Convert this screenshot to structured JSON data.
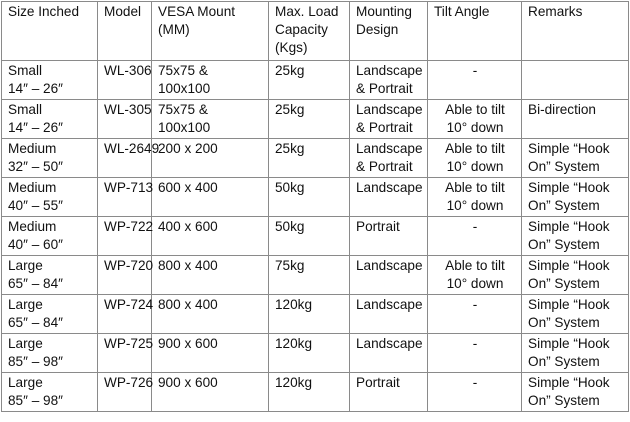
{
  "headers": [
    [
      "Size Inched"
    ],
    [
      "Model"
    ],
    [
      "VESA Mount",
      "(MM)"
    ],
    [
      "Max. Load",
      "Capacity",
      "(Kgs)"
    ],
    [
      "Mounting",
      "Design"
    ],
    [
      "Tilt Angle"
    ],
    [
      "Remarks"
    ]
  ],
  "rows": [
    [
      [
        "Small",
        "14″ – 26″"
      ],
      [
        "WL-306"
      ],
      [
        "75x75 &",
        "100x100"
      ],
      [
        "25kg"
      ],
      [
        "Landscape",
        "&  Portrait"
      ],
      [
        "-"
      ],
      []
    ],
    [
      [
        "Small",
        "14″ – 26″"
      ],
      [
        "WL-305"
      ],
      [
        "75x75 &",
        "100x100"
      ],
      [
        "25kg"
      ],
      [
        "Landscape",
        "&  Portrait"
      ],
      [
        "Able to tilt",
        "10° down"
      ],
      [
        "Bi-direction"
      ]
    ],
    [
      [
        "Medium",
        "32″ – 50″"
      ],
      [
        "WL-2649"
      ],
      [
        "200 x 200"
      ],
      [
        "25kg"
      ],
      [
        "Landscape",
        "&  Portrait"
      ],
      [
        "Able to tilt",
        "10° down"
      ],
      [
        "Simple “Hook",
        "On” System"
      ]
    ],
    [
      [
        "Medium",
        "40″ – 55″"
      ],
      [
        "WP-713"
      ],
      [
        "600 x 400"
      ],
      [
        "50kg"
      ],
      [
        "Landscape"
      ],
      [
        "Able to tilt",
        "10° down"
      ],
      [
        "Simple “Hook",
        "On” System"
      ]
    ],
    [
      [
        "Medium",
        "40″ – 60″"
      ],
      [
        "WP-722"
      ],
      [
        "400 x 600"
      ],
      [
        "50kg"
      ],
      [
        "Portrait"
      ],
      [
        "-"
      ],
      [
        "Simple “Hook",
        "On” System"
      ]
    ],
    [
      [
        "Large",
        "65″ – 84″"
      ],
      [
        "WP-720"
      ],
      [
        "800 x 400"
      ],
      [
        "75kg"
      ],
      [
        "Landscape"
      ],
      [
        "Able to tilt",
        "10° down"
      ],
      [
        "Simple “Hook",
        "On” System"
      ]
    ],
    [
      [
        "Large",
        "65″ – 84″"
      ],
      [
        "WP-724"
      ],
      [
        "800 x 400"
      ],
      [
        "120kg"
      ],
      [
        "Landscape"
      ],
      [
        "-"
      ],
      [
        "Simple “Hook",
        "On” System"
      ]
    ],
    [
      [
        "Large",
        "85″ – 98″"
      ],
      [
        "WP-725"
      ],
      [
        "900 x 600"
      ],
      [
        "120kg"
      ],
      [
        "Landscape"
      ],
      [
        "-"
      ],
      [
        "Simple “Hook",
        "On” System"
      ]
    ],
    [
      [
        "Large",
        "85″ – 98″"
      ],
      [
        "WP-726"
      ],
      [
        "900 x 600"
      ],
      [
        "120kg"
      ],
      [
        "Portrait"
      ],
      [
        "-"
      ],
      [
        "Simple “Hook",
        "On” System"
      ]
    ]
  ]
}
